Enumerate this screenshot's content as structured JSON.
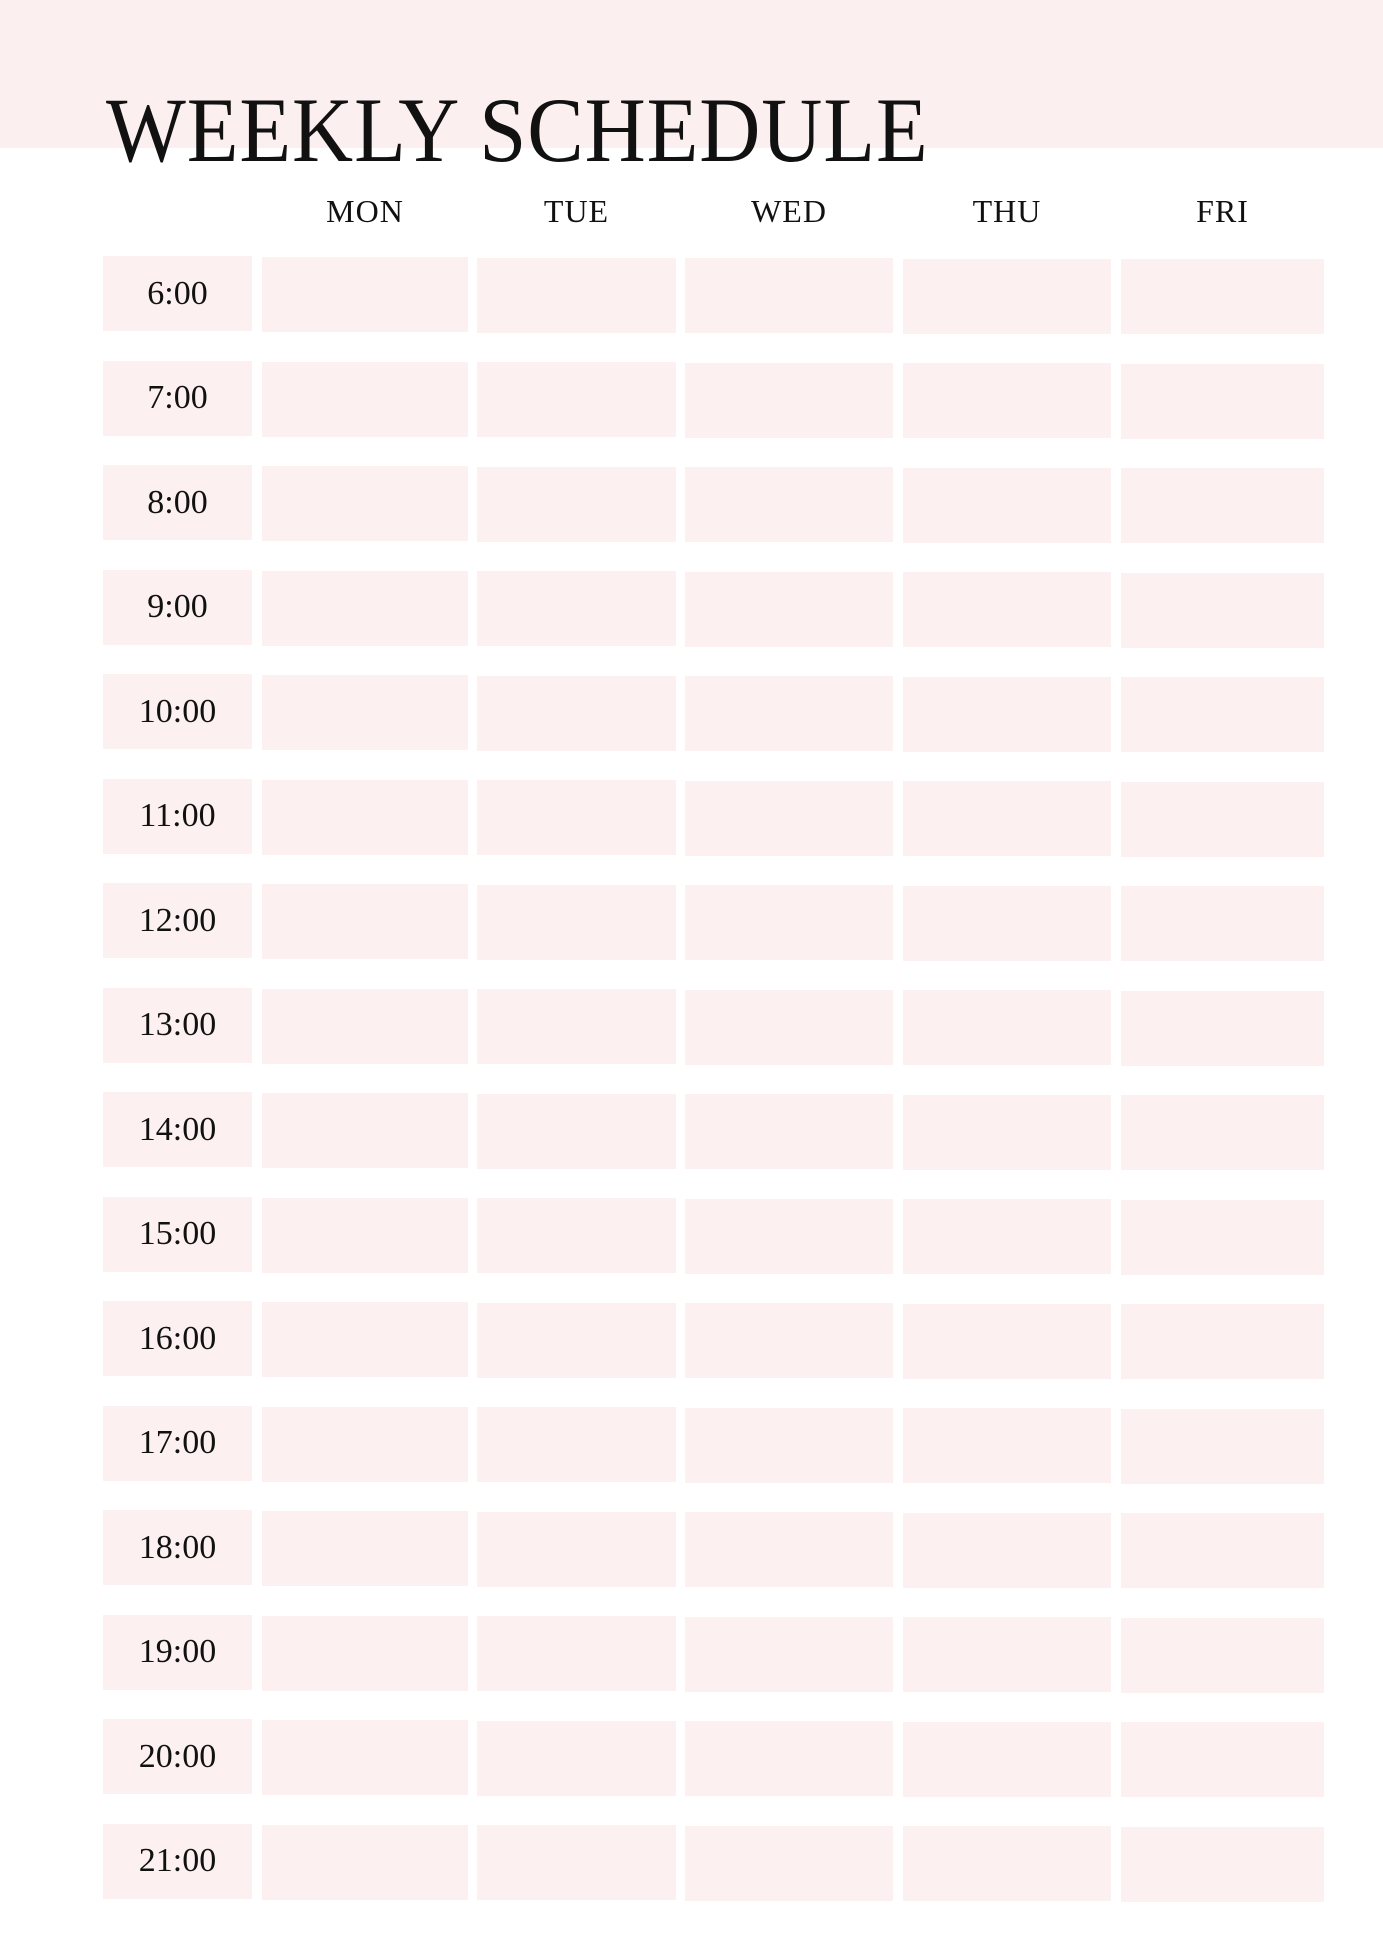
{
  "title": "WEEKLY SCHEDULE",
  "days": [
    "MON",
    "TUE",
    "WED",
    "THU",
    "FRI"
  ],
  "times": [
    "6:00",
    "7:00",
    "8:00",
    "9:00",
    "10:00",
    "11:00",
    "12:00",
    "13:00",
    "14:00",
    "15:00",
    "16:00",
    "17:00",
    "18:00",
    "19:00",
    "20:00",
    "21:00"
  ],
  "colors": {
    "header_bg": "#fcefef",
    "cell_bg": "#fcf0f0",
    "text": "#111111"
  }
}
